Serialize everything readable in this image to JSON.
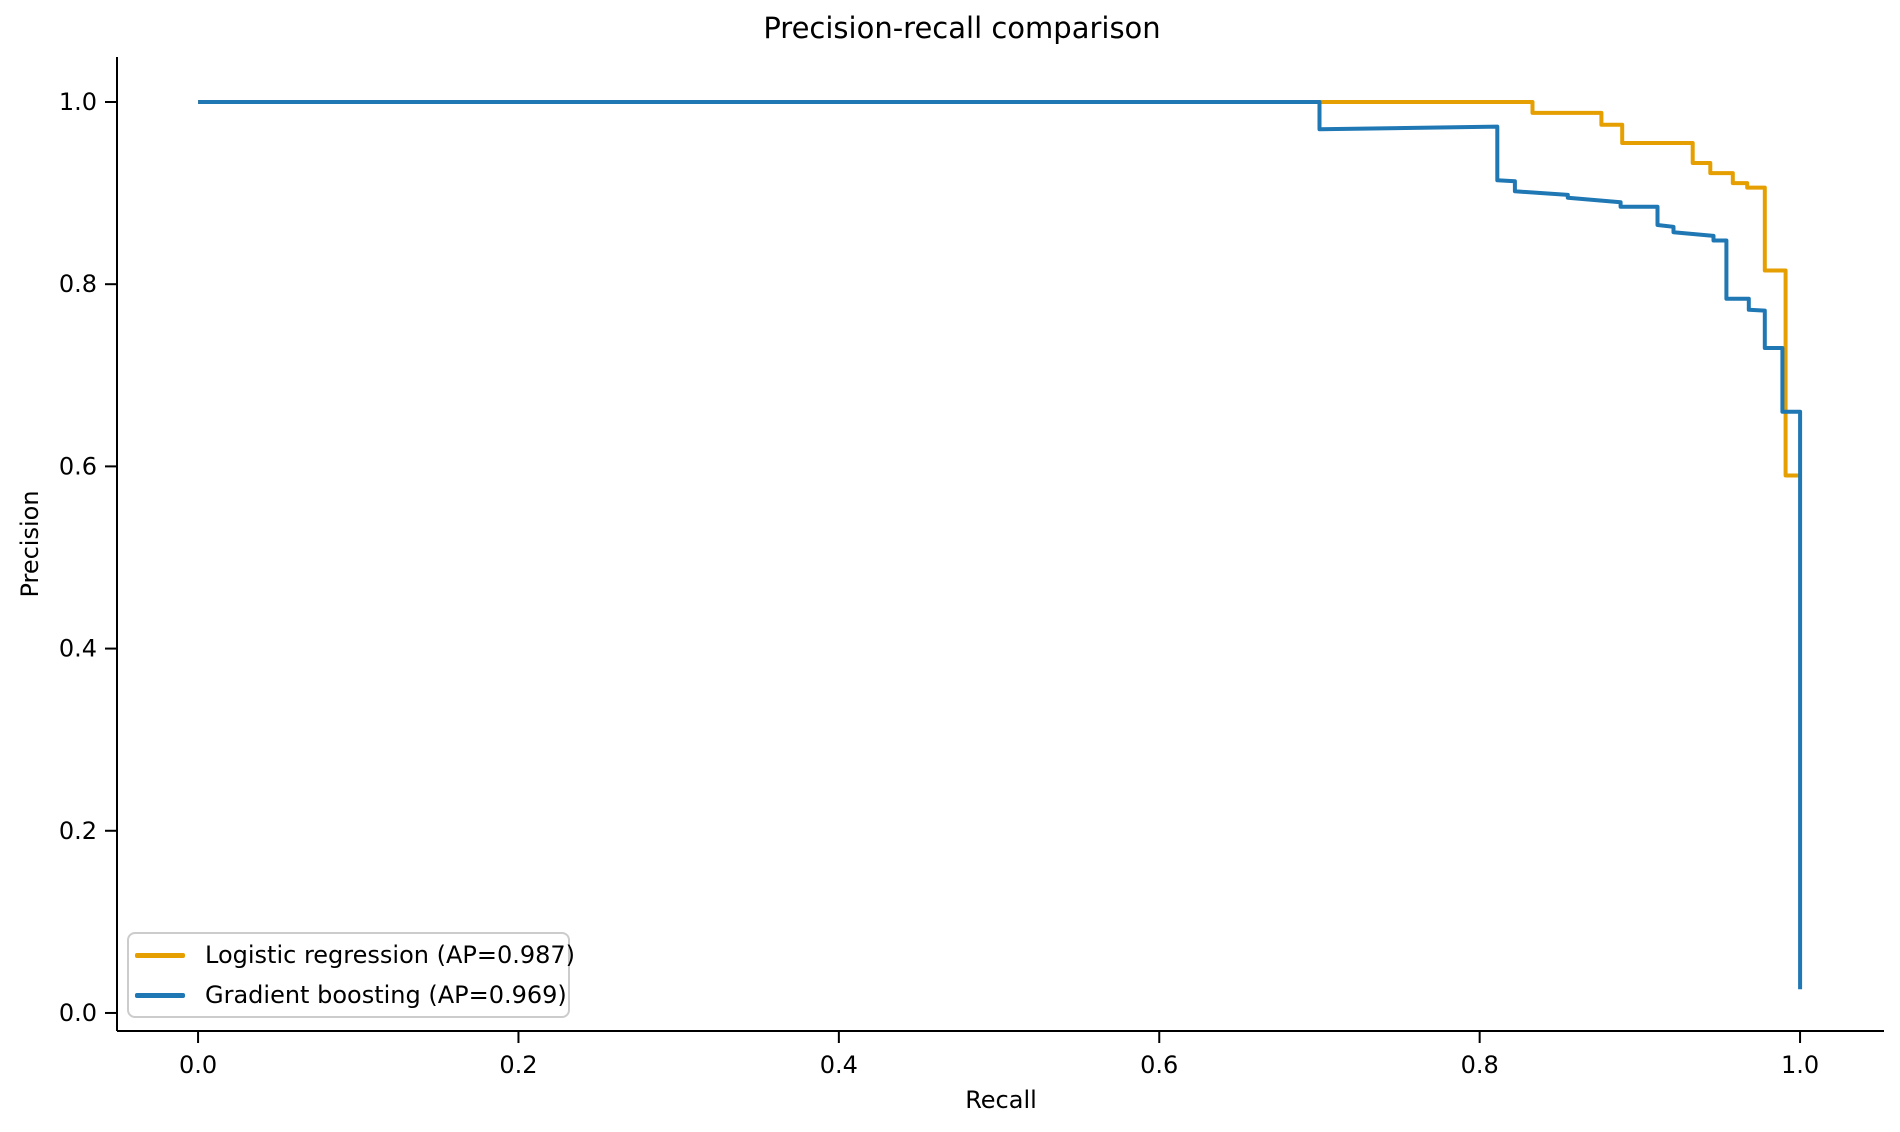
{
  "figure": {
    "title": "Precision-recall comparison",
    "xlabel": "Recall",
    "ylabel": "Precision",
    "background_color": "#ffffff",
    "text_color": "#000000",
    "spine_color": "#000000"
  },
  "chart_data": {
    "type": "line",
    "subtype": "precision-recall-step-curves",
    "title": "Precision-recall comparison",
    "xlabel": "Recall",
    "ylabel": "Precision",
    "xlim": [
      -0.0506,
      1.0524
    ],
    "ylim": [
      -0.0198,
      1.0494
    ],
    "xticks": [
      0.0,
      0.2,
      0.4,
      0.6,
      0.8,
      1.0
    ],
    "yticks": [
      0.0,
      0.2,
      0.4,
      0.6,
      0.8,
      1.0
    ],
    "grid": false,
    "legend_position": "lower left",
    "series": [
      {
        "name": "Logistic regression (AP=0.987)",
        "ap": 0.987,
        "color": "#E69F00",
        "line_width": 4,
        "points": [
          [
            0.0,
            1.0
          ],
          [
            0.833,
            1.0
          ],
          [
            0.833,
            0.988
          ],
          [
            0.876,
            0.988
          ],
          [
            0.876,
            0.975
          ],
          [
            0.889,
            0.975
          ],
          [
            0.889,
            0.955
          ],
          [
            0.933,
            0.955
          ],
          [
            0.933,
            0.933
          ],
          [
            0.944,
            0.933
          ],
          [
            0.944,
            0.922
          ],
          [
            0.958,
            0.922
          ],
          [
            0.958,
            0.911
          ],
          [
            0.967,
            0.911
          ],
          [
            0.967,
            0.906
          ],
          [
            0.978,
            0.906
          ],
          [
            0.978,
            0.815
          ],
          [
            0.991,
            0.815
          ],
          [
            0.991,
            0.59
          ],
          [
            0.999,
            0.59
          ]
        ]
      },
      {
        "name": "Gradient boosting (AP=0.969)",
        "ap": 0.969,
        "color": "#1F77B4",
        "line_width": 4,
        "points": [
          [
            0.0,
            1.0
          ],
          [
            0.7,
            1.0
          ],
          [
            0.7,
            0.97
          ],
          [
            0.811,
            0.973
          ],
          [
            0.811,
            0.914
          ],
          [
            0.822,
            0.913
          ],
          [
            0.822,
            0.902
          ],
          [
            0.855,
            0.898
          ],
          [
            0.855,
            0.895
          ],
          [
            0.888,
            0.89
          ],
          [
            0.888,
            0.885
          ],
          [
            0.911,
            0.885
          ],
          [
            0.911,
            0.865
          ],
          [
            0.921,
            0.863
          ],
          [
            0.921,
            0.857
          ],
          [
            0.946,
            0.853
          ],
          [
            0.946,
            0.848
          ],
          [
            0.954,
            0.848
          ],
          [
            0.954,
            0.784
          ],
          [
            0.968,
            0.784
          ],
          [
            0.968,
            0.772
          ],
          [
            0.978,
            0.771
          ],
          [
            0.978,
            0.73
          ],
          [
            0.989,
            0.73
          ],
          [
            0.989,
            0.66
          ],
          [
            1.0,
            0.66
          ],
          [
            1.0,
            0.026
          ]
        ]
      }
    ]
  },
  "legend": {
    "items": [
      {
        "label": "Logistic regression (AP=0.987)",
        "color": "#E69F00"
      },
      {
        "label": "Gradient boosting (AP=0.969)",
        "color": "#1F77B4"
      }
    ]
  }
}
